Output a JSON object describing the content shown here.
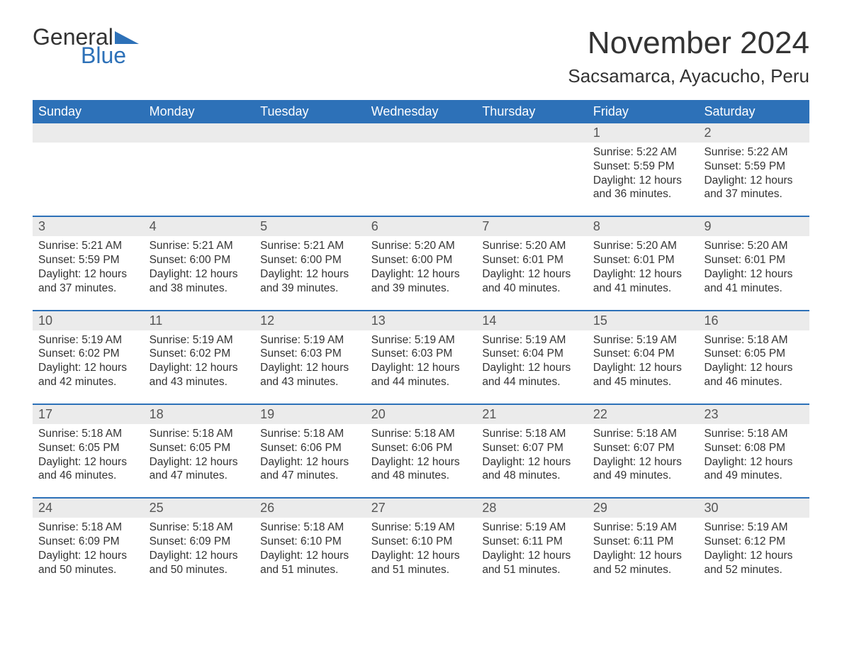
{
  "brand": {
    "text1": "General",
    "text2": "Blue",
    "accent_color": "#2d71b8"
  },
  "title": "November 2024",
  "location": "Sacsamarca, Ayacucho, Peru",
  "colors": {
    "header_bg": "#2d71b8",
    "header_text": "#ffffff",
    "date_strip_bg": "#ebebeb",
    "week_border": "#2d71b8",
    "body_text": "#333333",
    "page_bg": "#ffffff"
  },
  "typography": {
    "title_fontsize": 44,
    "location_fontsize": 26,
    "dow_fontsize": 18,
    "date_fontsize": 18,
    "body_fontsize": 15.5,
    "font_family": "Arial"
  },
  "layout": {
    "columns": 7,
    "rows": 5,
    "cell_min_height": 112
  },
  "days_of_week": [
    "Sunday",
    "Monday",
    "Tuesday",
    "Wednesday",
    "Thursday",
    "Friday",
    "Saturday"
  ],
  "weeks": [
    [
      null,
      null,
      null,
      null,
      null,
      {
        "date": "1",
        "sunrise": "5:22 AM",
        "sunset": "5:59 PM",
        "daylight": "12 hours and 36 minutes."
      },
      {
        "date": "2",
        "sunrise": "5:22 AM",
        "sunset": "5:59 PM",
        "daylight": "12 hours and 37 minutes."
      }
    ],
    [
      {
        "date": "3",
        "sunrise": "5:21 AM",
        "sunset": "5:59 PM",
        "daylight": "12 hours and 37 minutes."
      },
      {
        "date": "4",
        "sunrise": "5:21 AM",
        "sunset": "6:00 PM",
        "daylight": "12 hours and 38 minutes."
      },
      {
        "date": "5",
        "sunrise": "5:21 AM",
        "sunset": "6:00 PM",
        "daylight": "12 hours and 39 minutes."
      },
      {
        "date": "6",
        "sunrise": "5:20 AM",
        "sunset": "6:00 PM",
        "daylight": "12 hours and 39 minutes."
      },
      {
        "date": "7",
        "sunrise": "5:20 AM",
        "sunset": "6:01 PM",
        "daylight": "12 hours and 40 minutes."
      },
      {
        "date": "8",
        "sunrise": "5:20 AM",
        "sunset": "6:01 PM",
        "daylight": "12 hours and 41 minutes."
      },
      {
        "date": "9",
        "sunrise": "5:20 AM",
        "sunset": "6:01 PM",
        "daylight": "12 hours and 41 minutes."
      }
    ],
    [
      {
        "date": "10",
        "sunrise": "5:19 AM",
        "sunset": "6:02 PM",
        "daylight": "12 hours and 42 minutes."
      },
      {
        "date": "11",
        "sunrise": "5:19 AM",
        "sunset": "6:02 PM",
        "daylight": "12 hours and 43 minutes."
      },
      {
        "date": "12",
        "sunrise": "5:19 AM",
        "sunset": "6:03 PM",
        "daylight": "12 hours and 43 minutes."
      },
      {
        "date": "13",
        "sunrise": "5:19 AM",
        "sunset": "6:03 PM",
        "daylight": "12 hours and 44 minutes."
      },
      {
        "date": "14",
        "sunrise": "5:19 AM",
        "sunset": "6:04 PM",
        "daylight": "12 hours and 44 minutes."
      },
      {
        "date": "15",
        "sunrise": "5:19 AM",
        "sunset": "6:04 PM",
        "daylight": "12 hours and 45 minutes."
      },
      {
        "date": "16",
        "sunrise": "5:18 AM",
        "sunset": "6:05 PM",
        "daylight": "12 hours and 46 minutes."
      }
    ],
    [
      {
        "date": "17",
        "sunrise": "5:18 AM",
        "sunset": "6:05 PM",
        "daylight": "12 hours and 46 minutes."
      },
      {
        "date": "18",
        "sunrise": "5:18 AM",
        "sunset": "6:05 PM",
        "daylight": "12 hours and 47 minutes."
      },
      {
        "date": "19",
        "sunrise": "5:18 AM",
        "sunset": "6:06 PM",
        "daylight": "12 hours and 47 minutes."
      },
      {
        "date": "20",
        "sunrise": "5:18 AM",
        "sunset": "6:06 PM",
        "daylight": "12 hours and 48 minutes."
      },
      {
        "date": "21",
        "sunrise": "5:18 AM",
        "sunset": "6:07 PM",
        "daylight": "12 hours and 48 minutes."
      },
      {
        "date": "22",
        "sunrise": "5:18 AM",
        "sunset": "6:07 PM",
        "daylight": "12 hours and 49 minutes."
      },
      {
        "date": "23",
        "sunrise": "5:18 AM",
        "sunset": "6:08 PM",
        "daylight": "12 hours and 49 minutes."
      }
    ],
    [
      {
        "date": "24",
        "sunrise": "5:18 AM",
        "sunset": "6:09 PM",
        "daylight": "12 hours and 50 minutes."
      },
      {
        "date": "25",
        "sunrise": "5:18 AM",
        "sunset": "6:09 PM",
        "daylight": "12 hours and 50 minutes."
      },
      {
        "date": "26",
        "sunrise": "5:18 AM",
        "sunset": "6:10 PM",
        "daylight": "12 hours and 51 minutes."
      },
      {
        "date": "27",
        "sunrise": "5:19 AM",
        "sunset": "6:10 PM",
        "daylight": "12 hours and 51 minutes."
      },
      {
        "date": "28",
        "sunrise": "5:19 AM",
        "sunset": "6:11 PM",
        "daylight": "12 hours and 51 minutes."
      },
      {
        "date": "29",
        "sunrise": "5:19 AM",
        "sunset": "6:11 PM",
        "daylight": "12 hours and 52 minutes."
      },
      {
        "date": "30",
        "sunrise": "5:19 AM",
        "sunset": "6:12 PM",
        "daylight": "12 hours and 52 minutes."
      }
    ]
  ],
  "labels": {
    "sunrise": "Sunrise:",
    "sunset": "Sunset:",
    "daylight": "Daylight:"
  }
}
